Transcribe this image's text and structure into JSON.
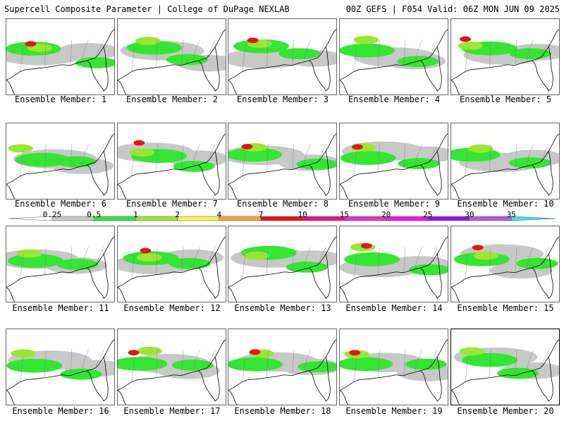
{
  "header": {
    "title": "Supercell Composite Parameter | College of DuPage NEXLAB",
    "run_info": "00Z GEFS | F054 Valid: 06Z MON JUN 09 2025"
  },
  "members": [
    {
      "label": "Ensemble Member: 1"
    },
    {
      "label": "Ensemble Member: 2"
    },
    {
      "label": "Ensemble Member: 3"
    },
    {
      "label": "Ensemble Member: 4"
    },
    {
      "label": "Ensemble Member: 5"
    },
    {
      "label": "Ensemble Member: 6"
    },
    {
      "label": "Ensemble Member: 7"
    },
    {
      "label": "Ensemble Member: 8"
    },
    {
      "label": "Ensemble Member: 9"
    },
    {
      "label": "Ensemble Member: 10"
    },
    {
      "label": "Ensemble Member: 11"
    },
    {
      "label": "Ensemble Member: 12"
    },
    {
      "label": "Ensemble Member: 13"
    },
    {
      "label": "Ensemble Member: 14"
    },
    {
      "label": "Ensemble Member: 15"
    },
    {
      "label": "Ensemble Member: 16"
    },
    {
      "label": "Ensemble Member: 17"
    },
    {
      "label": "Ensemble Member: 18"
    },
    {
      "label": "Ensemble Member: 19"
    },
    {
      "label": "Ensemble Member: 20",
      "selected": true
    }
  ],
  "colorbar": {
    "labels": [
      "0.25",
      "0.5",
      "1",
      "2",
      "4",
      "7",
      "10",
      "15",
      "20",
      "25",
      "30",
      "35"
    ],
    "colors": [
      "#c8c8c8",
      "#32e632",
      "#9be632",
      "#f5f55a",
      "#f5a03c",
      "#e61414",
      "#e6147d",
      "#e632c8",
      "#f014f0",
      "#9614e6",
      "#b45ae6",
      "#32e6f0"
    ]
  }
}
